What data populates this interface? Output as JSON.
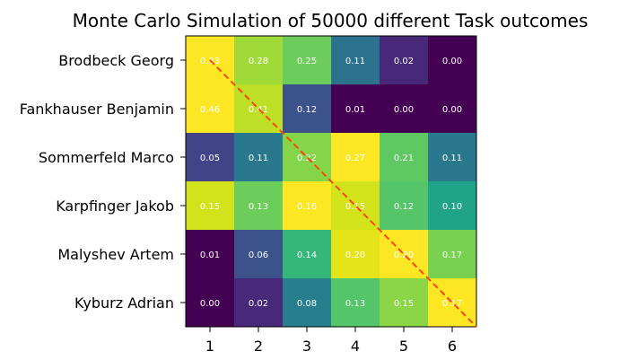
{
  "chart_data": {
    "type": "heatmap",
    "title": "Monte Carlo Simulation of 50000 different Task outcomes",
    "rows": [
      "Brodbeck Georg",
      "Fankhauser Benjamin",
      "Sommerfeld Marco",
      "Karpfinger Jakob",
      "Malyshev Artem",
      "Kyburz Adrian"
    ],
    "columns": [
      "1",
      "2",
      "3",
      "4",
      "5",
      "6"
    ],
    "values": [
      [
        0.33,
        0.28,
        0.25,
        0.11,
        0.02,
        0.0
      ],
      [
        0.46,
        0.41,
        0.12,
        0.01,
        0.0,
        0.0
      ],
      [
        0.05,
        0.11,
        0.22,
        0.27,
        0.21,
        0.11
      ],
      [
        0.15,
        0.13,
        0.16,
        0.15,
        0.12,
        0.1
      ],
      [
        0.01,
        0.06,
        0.14,
        0.2,
        0.2,
        0.17
      ],
      [
        0.0,
        0.02,
        0.08,
        0.13,
        0.15,
        0.17
      ]
    ],
    "cell_colors": [
      [
        "#fde725",
        "#a0da39",
        "#6ccd5a",
        "#2c718e",
        "#482878",
        "#440154"
      ],
      [
        "#fde725",
        "#bddf26",
        "#3b528b",
        "#440154",
        "#440154",
        "#440154"
      ],
      [
        "#414487",
        "#2a788e",
        "#85d54a",
        "#fde725",
        "#5ec962",
        "#2a788e"
      ],
      [
        "#d2e21b",
        "#6ccd5a",
        "#fde725",
        "#d2e21b",
        "#54c568",
        "#20a386"
      ],
      [
        "#440154",
        "#3b528b",
        "#35b779",
        "#e5e419",
        "#fde725",
        "#7ad151"
      ],
      [
        "#440154",
        "#482878",
        "#277f8e",
        "#54c568",
        "#8bd646",
        "#fde725"
      ]
    ],
    "diagonal_line_color": "#ff4500",
    "colormap": "viridis"
  }
}
